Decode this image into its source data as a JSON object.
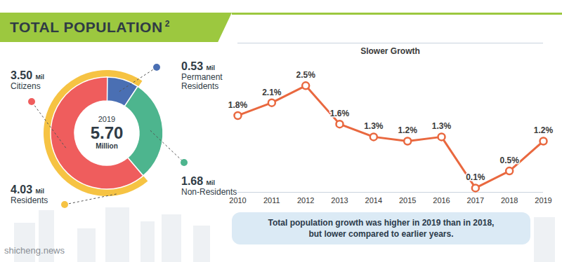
{
  "header": {
    "title": "TOTAL POPULATION",
    "superscript": "2"
  },
  "chart_data": [
    {
      "type": "donut",
      "center_labels": {
        "year": "2019",
        "total": 5.7,
        "total_label": "5.70",
        "unit": "Million"
      },
      "categories": [
        "Permanent Residents",
        "Non-Residents",
        "Citizens"
      ],
      "values": [
        0.53,
        1.68,
        3.5
      ],
      "value_labels": [
        "0.53",
        "1.68",
        "3.50"
      ],
      "unit_label": "Mil",
      "colors": [
        "#4a6fb3",
        "#4db58e",
        "#ef5d5d"
      ],
      "ring": {
        "name": "Residents",
        "value": 4.03,
        "value_label": "4.03",
        "color": "#f6c343",
        "categories": [
          "Citizens",
          "Permanent Residents"
        ]
      },
      "data_labels": true
    },
    {
      "type": "line",
      "title": "Slower Growth",
      "x": [
        2010,
        2011,
        2012,
        2013,
        2014,
        2015,
        2016,
        2017,
        2018,
        2019
      ],
      "values": [
        1.8,
        2.1,
        2.5,
        1.6,
        1.3,
        1.2,
        1.3,
        0.1,
        0.5,
        1.2
      ],
      "value_labels": [
        "1.8%",
        "2.1%",
        "2.5%",
        "1.6%",
        "1.3%",
        "1.2%",
        "1.3%",
        "0.1%",
        "0.5%",
        "1.2%"
      ],
      "color": "#e9683f",
      "marker": "circle",
      "xlim": [
        2010,
        2019
      ],
      "xticks": [
        2010,
        2011,
        2012,
        2013,
        2014,
        2015,
        2016,
        2017,
        2018,
        2019
      ],
      "ylim": [
        0,
        3.5
      ],
      "tick_labels": "x",
      "data_labels": true,
      "caption": [
        "Total population growth was higher in 2019 than in 2018,",
        "but lower compared to earlier years."
      ]
    }
  ],
  "watermark": "shicheng.news"
}
